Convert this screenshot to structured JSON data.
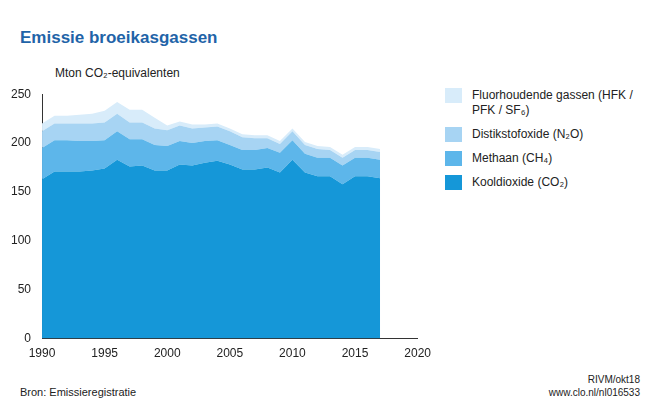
{
  "chart_data": {
    "type": "area",
    "title": "Emissie broeikasgassen",
    "ylabel": "Mton CO₂-equivalenten",
    "source": "Bron: Emissieregistratie",
    "credit": "RIVM/okt18",
    "url": "www.clo.nl/nl016533",
    "stacked": true,
    "grid": false,
    "legend": "right",
    "x": [
      1990,
      1991,
      1992,
      1993,
      1994,
      1995,
      1996,
      1997,
      1998,
      1999,
      2000,
      2001,
      2002,
      2003,
      2004,
      2005,
      2006,
      2007,
      2008,
      2009,
      2010,
      2011,
      2012,
      2013,
      2014,
      2015,
      2016,
      2017
    ],
    "xlim": [
      1990,
      2020
    ],
    "xticks": [
      1990,
      1995,
      2000,
      2005,
      2010,
      2015,
      2020
    ],
    "ylim": [
      0,
      250
    ],
    "yticks": [
      0,
      50,
      100,
      150,
      200,
      250
    ],
    "series": [
      {
        "name": "Kooldioxide (CO₂)",
        "color": "#1597d8",
        "values": [
          163,
          171,
          171,
          171,
          172,
          174,
          183,
          176,
          177,
          172,
          172,
          178,
          177,
          180,
          182,
          178,
          173,
          173,
          175,
          170,
          183,
          170,
          166,
          166,
          158,
          166,
          166,
          164
        ]
      },
      {
        "name": "Methaan (CH₄)",
        "color": "#5db6ea",
        "values": [
          32,
          32,
          32,
          31,
          30,
          29,
          29,
          28,
          27,
          26,
          25,
          24,
          23,
          22,
          21,
          20,
          20,
          20,
          20,
          20,
          20,
          19,
          19,
          19,
          19,
          19,
          19,
          19
        ]
      },
      {
        "name": "Distikstofoxide (N₂O)",
        "color": "#a7d4f3",
        "values": [
          17,
          17,
          17,
          18,
          18,
          18,
          18,
          17,
          17,
          17,
          16,
          16,
          15,
          14,
          14,
          14,
          13,
          12,
          10,
          9,
          9,
          9,
          9,
          8,
          8,
          8,
          8,
          8
        ]
      },
      {
        "name": "Fluorhoudende gassen (HFK / PFK / SF₆)",
        "color": "#d8ecfa",
        "values": [
          8,
          8,
          8,
          9,
          10,
          12,
          12,
          13,
          13,
          11,
          5,
          4,
          4,
          3,
          3,
          3,
          3,
          3,
          3,
          3,
          3,
          3,
          3,
          3,
          3,
          3,
          3,
          3
        ]
      }
    ]
  }
}
